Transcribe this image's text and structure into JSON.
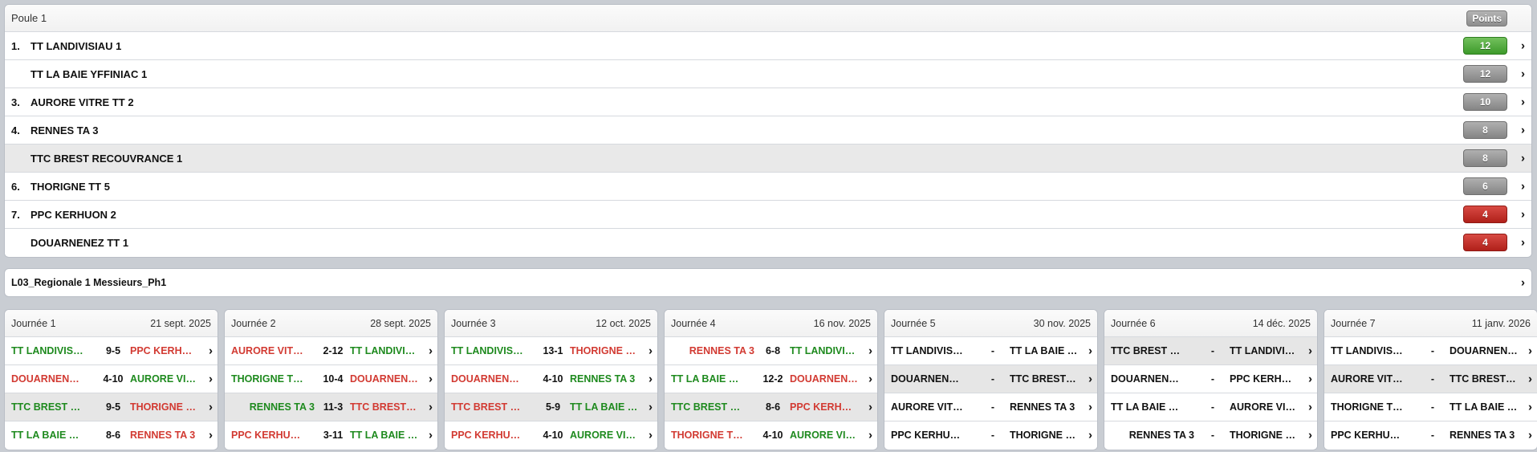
{
  "poule": {
    "title": "Poule 1",
    "points_label": "Points",
    "rows": [
      {
        "rank": "1.",
        "team": "TT LANDIVISIAU 1",
        "points": "12",
        "color": "green",
        "highlight": false
      },
      {
        "rank": "",
        "team": "TT LA BAIE YFFINIAC 1",
        "points": "12",
        "color": "grey",
        "highlight": false
      },
      {
        "rank": "3.",
        "team": "AURORE VITRE TT 2",
        "points": "10",
        "color": "grey",
        "highlight": false
      },
      {
        "rank": "4.",
        "team": "RENNES TA 3",
        "points": "8",
        "color": "grey",
        "highlight": false
      },
      {
        "rank": "",
        "team": "TTC BREST RECOUVRANCE 1",
        "points": "8",
        "color": "grey",
        "highlight": true
      },
      {
        "rank": "6.",
        "team": "THORIGNE TT 5",
        "points": "6",
        "color": "grey",
        "highlight": false
      },
      {
        "rank": "7.",
        "team": "PPC KERHUON 2",
        "points": "4",
        "color": "red",
        "highlight": false
      },
      {
        "rank": "",
        "team": "DOUARNENEZ TT 1",
        "points": "4",
        "color": "red",
        "highlight": false
      }
    ]
  },
  "competition": {
    "name": "L03_Regionale 1 Messieurs_Ph1"
  },
  "journees": [
    {
      "title": "Journée 1",
      "date": "21 sept. 2025",
      "matches": [
        {
          "home": "TT LANDIVIS…",
          "score": "9-5",
          "away": "PPC KERH…",
          "home_state": "win",
          "away_state": "lose",
          "highlight": false
        },
        {
          "home": "DOUARNEN…",
          "score": "4-10",
          "away": "AURORE VI…",
          "home_state": "lose",
          "away_state": "win",
          "highlight": false
        },
        {
          "home": "TTC BREST …",
          "score": "9-5",
          "away": "THORIGNE …",
          "home_state": "win",
          "away_state": "lose",
          "highlight": true
        },
        {
          "home": "TT LA BAIE …",
          "score": "8-6",
          "away": "RENNES TA 3",
          "home_state": "win",
          "away_state": "lose",
          "highlight": false
        }
      ]
    },
    {
      "title": "Journée 2",
      "date": "28 sept. 2025",
      "matches": [
        {
          "home": "AURORE VIT…",
          "score": "2-12",
          "away": "TT LANDIVI…",
          "home_state": "lose",
          "away_state": "win",
          "highlight": false
        },
        {
          "home": "THORIGNE T…",
          "score": "10-4",
          "away": "DOUARNEN…",
          "home_state": "win",
          "away_state": "lose",
          "highlight": false
        },
        {
          "home": "RENNES TA 3",
          "score": "11-3",
          "away": "TTC BREST…",
          "home_state": "win",
          "away_state": "lose",
          "highlight": true,
          "home_right": true
        },
        {
          "home": "PPC KERHU…",
          "score": "3-11",
          "away": "TT LA BAIE …",
          "home_state": "lose",
          "away_state": "win",
          "highlight": false
        }
      ]
    },
    {
      "title": "Journée 3",
      "date": "12 oct. 2025",
      "matches": [
        {
          "home": "TT LANDIVIS…",
          "score": "13-1",
          "away": "THORIGNE …",
          "home_state": "win",
          "away_state": "lose",
          "highlight": false
        },
        {
          "home": "DOUARNEN…",
          "score": "4-10",
          "away": "RENNES TA 3",
          "home_state": "lose",
          "away_state": "win",
          "highlight": false
        },
        {
          "home": "TTC BREST …",
          "score": "5-9",
          "away": "TT LA BAIE …",
          "home_state": "lose",
          "away_state": "win",
          "highlight": true
        },
        {
          "home": "PPC KERHU…",
          "score": "4-10",
          "away": "AURORE VI…",
          "home_state": "lose",
          "away_state": "win",
          "highlight": false
        }
      ]
    },
    {
      "title": "Journée 4",
      "date": "16 nov. 2025",
      "matches": [
        {
          "home": "RENNES TA 3",
          "score": "6-8",
          "away": "TT LANDIVI…",
          "home_state": "lose",
          "away_state": "win",
          "highlight": false,
          "home_right": true
        },
        {
          "home": "TT LA BAIE …",
          "score": "12-2",
          "away": "DOUARNEN…",
          "home_state": "win",
          "away_state": "lose",
          "highlight": false
        },
        {
          "home": "TTC BREST …",
          "score": "8-6",
          "away": "PPC KERH…",
          "home_state": "win",
          "away_state": "lose",
          "highlight": true
        },
        {
          "home": "THORIGNE T…",
          "score": "4-10",
          "away": "AURORE VI…",
          "home_state": "lose",
          "away_state": "win",
          "highlight": false
        }
      ]
    },
    {
      "title": "Journée 5",
      "date": "30 nov. 2025",
      "matches": [
        {
          "home": "TT LANDIVIS…",
          "score": "-",
          "away": "TT LA BAIE …",
          "home_state": "neutral",
          "away_state": "neutral",
          "highlight": false
        },
        {
          "home": "DOUARNEN…",
          "score": "-",
          "away": "TTC BREST…",
          "home_state": "neutral",
          "away_state": "neutral",
          "highlight": true
        },
        {
          "home": "AURORE VIT…",
          "score": "-",
          "away": "RENNES TA 3",
          "home_state": "neutral",
          "away_state": "neutral",
          "highlight": false
        },
        {
          "home": "PPC KERHU…",
          "score": "-",
          "away": "THORIGNE …",
          "home_state": "neutral",
          "away_state": "neutral",
          "highlight": false
        }
      ]
    },
    {
      "title": "Journée 6",
      "date": "14 déc. 2025",
      "matches": [
        {
          "home": "TTC BREST …",
          "score": "-",
          "away": "TT LANDIVI…",
          "home_state": "neutral",
          "away_state": "neutral",
          "highlight": true
        },
        {
          "home": "DOUARNEN…",
          "score": "-",
          "away": "PPC KERH…",
          "home_state": "neutral",
          "away_state": "neutral",
          "highlight": false
        },
        {
          "home": "TT LA BAIE …",
          "score": "-",
          "away": "AURORE VI…",
          "home_state": "neutral",
          "away_state": "neutral",
          "highlight": false
        },
        {
          "home": "RENNES TA 3",
          "score": "-",
          "away": "THORIGNE …",
          "home_state": "neutral",
          "away_state": "neutral",
          "highlight": false,
          "home_right": true
        }
      ]
    },
    {
      "title": "Journée 7",
      "date": "11 janv. 2026",
      "matches": [
        {
          "home": "TT LANDIVIS…",
          "score": "-",
          "away": "DOUARNEN…",
          "home_state": "neutral",
          "away_state": "neutral",
          "highlight": false
        },
        {
          "home": "AURORE VIT…",
          "score": "-",
          "away": "TTC BREST…",
          "home_state": "neutral",
          "away_state": "neutral",
          "highlight": true
        },
        {
          "home": "THORIGNE T…",
          "score": "-",
          "away": "TT LA BAIE …",
          "home_state": "neutral",
          "away_state": "neutral",
          "highlight": false
        },
        {
          "home": "PPC KERHU…",
          "score": "-",
          "away": "RENNES TA 3",
          "home_state": "neutral",
          "away_state": "neutral",
          "highlight": false
        }
      ]
    }
  ]
}
